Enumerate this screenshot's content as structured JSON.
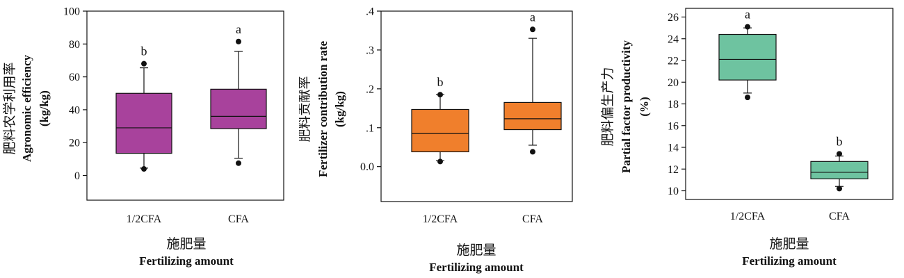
{
  "chart_data": [
    {
      "type": "box",
      "ylabel_cn": "肥料农学利用率",
      "ylabel_en": "Agronomic efficiency",
      "ylabel_unit": "(kg/kg)",
      "xlabel_cn": "施肥量",
      "xlabel_en": "Fertilizing amount",
      "ylim": [
        -15,
        100
      ],
      "yticks": [
        0,
        20,
        40,
        60,
        80,
        100
      ],
      "ytick_labels": [
        "0",
        "20",
        "40",
        "60",
        "80",
        "100"
      ],
      "box_color": "#a8429c",
      "categories": [
        "1/2CFA",
        "CFA"
      ],
      "boxes": [
        {
          "category": "1/2CFA",
          "q1": 13.5,
          "median": 29,
          "q3": 50,
          "whisker_low": 4.5,
          "whisker_high": 65.5,
          "outliers": [
            4,
            68
          ],
          "letter": "b"
        },
        {
          "category": "CFA",
          "q1": 28.5,
          "median": 36,
          "q3": 52.5,
          "whisker_low": 10.5,
          "whisker_high": 75.5,
          "outliers": [
            7.5,
            81.5
          ],
          "letter": "a"
        }
      ]
    },
    {
      "type": "box",
      "ylabel_cn": "肥料贡献率",
      "ylabel_en": "Fertilizer contribution rate",
      "ylabel_unit": "(kg/kg)",
      "xlabel_cn": "施肥量",
      "xlabel_en": "Fertilizing amount",
      "ylim": [
        -0.09,
        0.4
      ],
      "yticks": [
        0,
        0.1,
        0.2,
        0.3,
        0.4
      ],
      "ytick_labels": [
        "0.0",
        ".1",
        ".2",
        ".3",
        ".4"
      ],
      "box_color": "#f07f2c",
      "categories": [
        "1/2CFA",
        "CFA"
      ],
      "boxes": [
        {
          "category": "1/2CFA",
          "q1": 0.038,
          "median": 0.085,
          "q3": 0.147,
          "whisker_low": 0.015,
          "whisker_high": 0.185,
          "outliers": [
            0.013,
            0.185
          ],
          "letter": "b"
        },
        {
          "category": "CFA",
          "q1": 0.095,
          "median": 0.123,
          "q3": 0.165,
          "whisker_low": 0.055,
          "whisker_high": 0.33,
          "outliers": [
            0.038,
            0.353
          ],
          "letter": "a"
        }
      ]
    },
    {
      "type": "box",
      "ylabel_cn": "肥料偏生产力",
      "ylabel_en": "Partial factor productivity",
      "ylabel_unit": "(%)",
      "xlabel_cn": "施肥量",
      "xlabel_en": "Fertilizing amount",
      "ylim": [
        9.2,
        26.8
      ],
      "yticks": [
        10,
        12,
        14,
        16,
        18,
        20,
        22,
        24,
        26
      ],
      "ytick_labels": [
        "10",
        "12",
        "14",
        "16",
        "18",
        "20",
        "22",
        "24",
        "26"
      ],
      "box_color": "#6ec3a0",
      "categories": [
        "1/2CFA",
        "CFA"
      ],
      "boxes": [
        {
          "category": "1/2CFA",
          "q1": 20.2,
          "median": 22.1,
          "q3": 24.4,
          "whisker_low": 19,
          "whisker_high": 25,
          "outliers": [
            18.6,
            25.1
          ],
          "letter": "a"
        },
        {
          "category": "CFA",
          "q1": 11.1,
          "median": 11.7,
          "q3": 12.7,
          "whisker_low": 10.4,
          "whisker_high": 13.2,
          "outliers": [
            10.2,
            13.4
          ],
          "letter": "b"
        }
      ]
    }
  ]
}
